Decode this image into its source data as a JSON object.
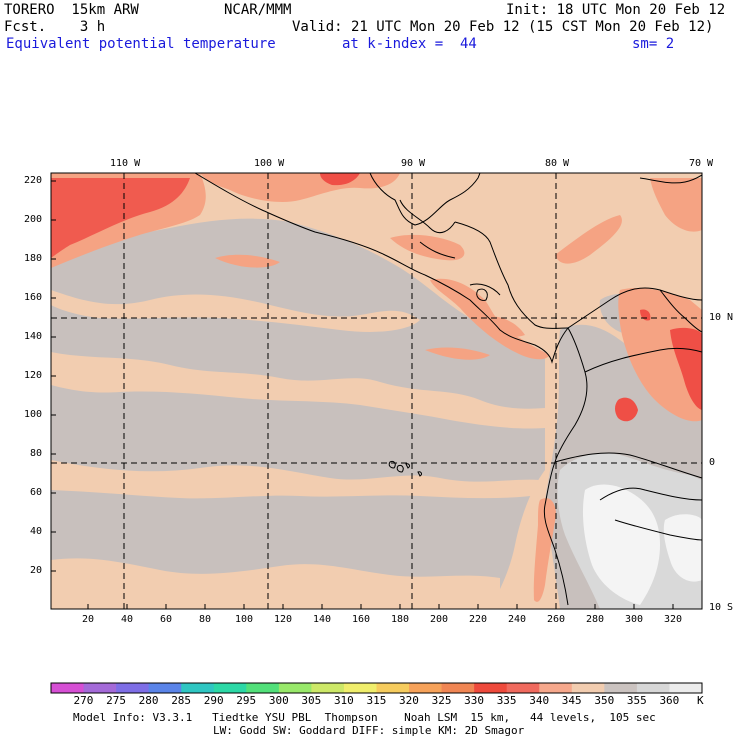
{
  "header": {
    "model": "TORERO  15km ARW",
    "org": "NCAR/MMM",
    "init": "Init: 18 UTC Mon 20 Feb 12",
    "fcst": "Fcst.    3 h",
    "valid": "Valid: 21 UTC Mon 20 Feb 12 (15 CST Mon 20 Feb 12)",
    "field": "Equivalent potential temperature",
    "level": "at k-index =  44",
    "smooth": "sm= 2"
  },
  "map": {
    "lon_labels": [
      "110 W",
      "100 W",
      "90 W",
      "80 W",
      "70 W"
    ],
    "lat_labels": [
      "10 N",
      "0",
      "10 S"
    ],
    "y_ticks": [
      "220",
      "200",
      "180",
      "160",
      "140",
      "120",
      "100",
      "80",
      "60",
      "40",
      "20"
    ],
    "x_ticks": [
      "20",
      "40",
      "60",
      "80",
      "100",
      "120",
      "140",
      "160",
      "180",
      "200",
      "220",
      "240",
      "260",
      "280",
      "300",
      "320"
    ],
    "colors": {
      "warm_tan": "#f2cdb0",
      "gray": "#c8c0bd",
      "salmon": "#f5a383",
      "red": "#ef4f46",
      "light_gray": "#d9d9d9",
      "white": "#f4f4f4"
    }
  },
  "colorbar": {
    "labels": [
      "270",
      "275",
      "280",
      "285",
      "290",
      "295",
      "300",
      "305",
      "310",
      "315",
      "320",
      "325",
      "330",
      "335",
      "340",
      "345",
      "350",
      "355",
      "360"
    ],
    "unit": "K",
    "colors": [
      "#d64fd4",
      "#a46ad8",
      "#7e6ee6",
      "#5a84e8",
      "#2fc6c2",
      "#2cd8a6",
      "#52e07a",
      "#98e86a",
      "#cde868",
      "#f0ee6c",
      "#f6cc5e",
      "#f6a25a",
      "#f08654",
      "#ee4a3c",
      "#f06a5e",
      "#f6a88c",
      "#f2cdb0",
      "#cbc3c0",
      "#d7d7d7",
      "#ececec"
    ]
  },
  "footer": {
    "line1": "Model Info: V3.3.1   Tiedtke YSU PBL  Thompson    Noah LSM  15 km,   44 levels,  105 sec",
    "line2": "LW: Godd SW: Goddard DIFF: simple KM: 2D Smagor"
  }
}
